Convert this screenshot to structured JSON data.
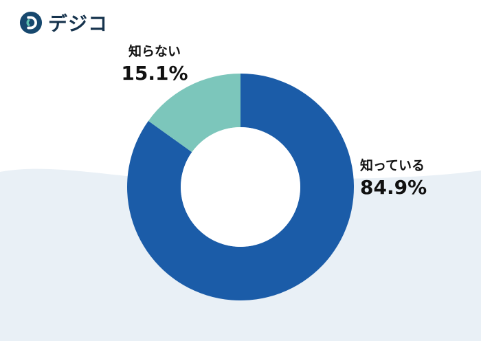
{
  "logo": {
    "text": "デジコ",
    "icon": "digico-d-icon"
  },
  "chart_data": {
    "type": "pie",
    "subtype": "donut",
    "title": "",
    "categories": [
      "知っている",
      "知らない"
    ],
    "values": [
      84.9,
      15.1
    ],
    "segments": [
      {
        "key": "shitteiru",
        "label": "知っている",
        "value": 84.9,
        "percent_label": "84.9%",
        "color": "#1b5ca8"
      },
      {
        "key": "shiranai",
        "label": "知らない",
        "value": 15.1,
        "percent_label": "15.1%",
        "color": "#7cc6bb"
      }
    ],
    "start_angle_deg": 0,
    "direction": "clockwise",
    "inner_radius_ratio": 0.53,
    "donut_hole_color": "#ffffff",
    "legend_position": "none",
    "label_placement": "outside",
    "grid": false
  },
  "colors": {
    "page_background": "#ffffff",
    "wave_background": "#e9f0f6",
    "label_text": "#111111",
    "logo_navy": "#17486e",
    "logo_teal": "#5bbfae"
  }
}
